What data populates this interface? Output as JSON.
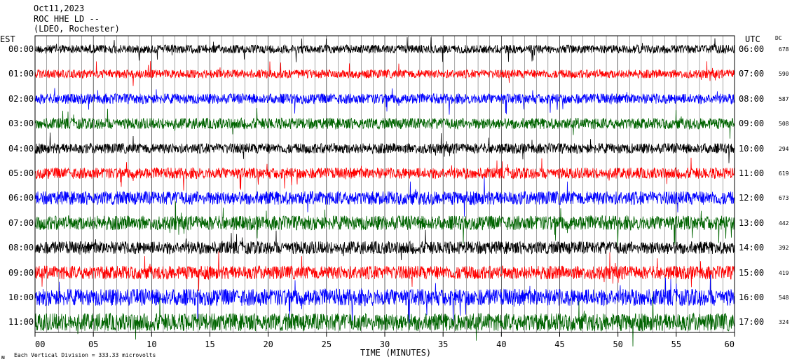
{
  "header": {
    "line1": "Oct11,2023",
    "line2": "ROC HHE LD --",
    "line3": "(LDEO, Rochester)"
  },
  "footer": {
    "note": "Each Vertical Division = 333.33 microvolts"
  },
  "chart_data": {
    "type": "line",
    "title": "",
    "xlabel": "TIME (MINUTES)",
    "left_axis_label": "EST",
    "right_axis_label": "UTC",
    "dc_label": "DC",
    "xlim": [
      0,
      60
    ],
    "x_ticks": [
      "00",
      "05",
      "10",
      "15",
      "20",
      "25",
      "30",
      "35",
      "40",
      "45",
      "50",
      "55",
      "60"
    ],
    "grid": "vertical lines every minute",
    "rows": [
      {
        "est": "00:00",
        "utc": "06:00",
        "dc": "678",
        "color": "#000000",
        "noise": 1.0
      },
      {
        "est": "01:00",
        "utc": "07:00",
        "dc": "590",
        "color": "#ff0000",
        "noise": 1.0
      },
      {
        "est": "02:00",
        "utc": "08:00",
        "dc": "587",
        "color": "#0000ff",
        "noise": 1.2
      },
      {
        "est": "03:00",
        "utc": "09:00",
        "dc": "508",
        "color": "#006400",
        "noise": 1.3
      },
      {
        "est": "04:00",
        "utc": "10:00",
        "dc": "294",
        "color": "#000000",
        "noise": 1.2
      },
      {
        "est": "05:00",
        "utc": "11:00",
        "dc": "619",
        "color": "#ff0000",
        "noise": 1.3
      },
      {
        "est": "06:00",
        "utc": "12:00",
        "dc": "673",
        "color": "#0000ff",
        "noise": 1.6
      },
      {
        "est": "07:00",
        "utc": "13:00",
        "dc": "442",
        "color": "#006400",
        "noise": 1.7
      },
      {
        "est": "08:00",
        "utc": "14:00",
        "dc": "392",
        "color": "#000000",
        "noise": 1.5
      },
      {
        "est": "09:00",
        "utc": "15:00",
        "dc": "419",
        "color": "#ff0000",
        "noise": 1.6
      },
      {
        "est": "10:00",
        "utc": "16:00",
        "dc": "548",
        "color": "#0000ff",
        "noise": 2.0
      },
      {
        "est": "11:00",
        "utc": "17:00",
        "dc": "324",
        "color": "#006400",
        "noise": 2.1
      }
    ]
  }
}
